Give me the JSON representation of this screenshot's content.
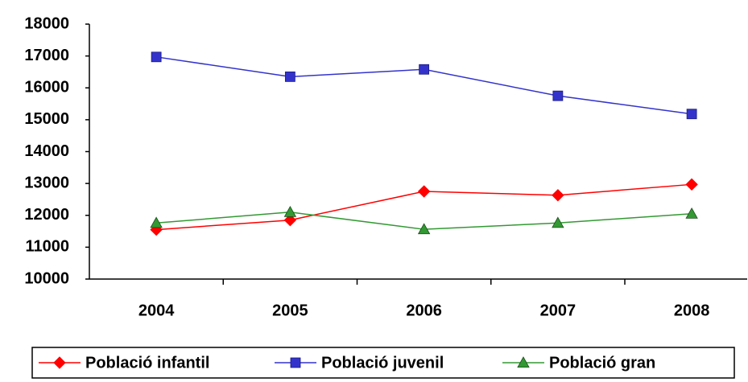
{
  "chart_data": {
    "type": "line",
    "categories": [
      "2004",
      "2005",
      "2006",
      "2007",
      "2008"
    ],
    "series": [
      {
        "name": "Població infantil",
        "color": "#ff0000",
        "marker": "diamond",
        "values": [
          11550,
          11850,
          12750,
          12630,
          12970
        ]
      },
      {
        "name": "Població juvenil",
        "color": "#3333cc",
        "marker": "square",
        "values": [
          16970,
          16350,
          16580,
          15750,
          15180
        ]
      },
      {
        "name": "Població gran",
        "color": "#339933",
        "marker": "triangle",
        "values": [
          11760,
          12100,
          11560,
          11760,
          12050
        ]
      }
    ],
    "ylim": [
      10000,
      18000
    ],
    "yticks": [
      10000,
      11000,
      12000,
      13000,
      14000,
      15000,
      16000,
      17000,
      18000
    ],
    "grid": false,
    "legend": "bottom"
  }
}
